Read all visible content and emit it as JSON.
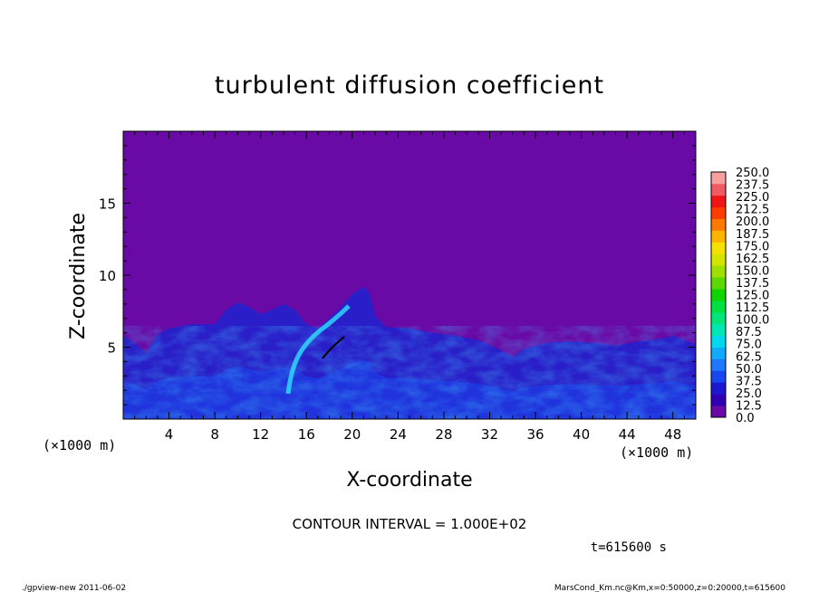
{
  "chart_data": {
    "type": "heatmap",
    "title": "turbulent diffusion coefficient",
    "xlabel": "X-coordinate",
    "ylabel": "Z-coordinate",
    "x_unit_left": "(×1000 m)",
    "x_unit_right": "(×1000 m)",
    "xlim": [
      0,
      50
    ],
    "ylim": [
      0,
      20
    ],
    "x_ticks": [
      4,
      8,
      12,
      16,
      20,
      24,
      28,
      32,
      36,
      40,
      44,
      48
    ],
    "y_ticks": [
      5,
      10,
      15
    ],
    "colorbar": {
      "levels": [
        0.0,
        12.5,
        25.0,
        37.5,
        50.0,
        62.5,
        75.0,
        87.5,
        100.0,
        112.5,
        125.0,
        137.5,
        150.0,
        162.5,
        175.0,
        187.5,
        200.0,
        212.5,
        225.0,
        237.5,
        250.0
      ],
      "level_labels": [
        "0.0",
        "12.5",
        "25.0",
        "37.5",
        "50.0",
        "62.5",
        "75.0",
        "87.5",
        "100.0",
        "112.5",
        "125.0",
        "137.5",
        "150.0",
        "162.5",
        "175.0",
        "187.5",
        "200.0",
        "212.5",
        "225.0",
        "237.5",
        "250.0"
      ],
      "colors": [
        "#6a0aa6",
        "#3000b4",
        "#1c18d2",
        "#1646f0",
        "#1e78ff",
        "#10aaff",
        "#00d8f0",
        "#00e6b4",
        "#00e678",
        "#00e040",
        "#10d400",
        "#5ad800",
        "#9ee000",
        "#d2e400",
        "#f6e000",
        "#ffb400",
        "#ff7800",
        "#ff3c00",
        "#f01414",
        "#f05a64",
        "#f8a0a0"
      ]
    },
    "background_value": 0.0,
    "region_top_profile": [
      [
        0,
        5.8
      ],
      [
        1,
        5.3
      ],
      [
        2,
        4.6
      ],
      [
        3,
        5.9
      ],
      [
        4,
        6.3
      ],
      [
        6,
        6.6
      ],
      [
        8,
        6.6
      ],
      [
        9,
        7.6
      ],
      [
        10,
        8.1
      ],
      [
        11,
        7.8
      ],
      [
        12,
        7.3
      ],
      [
        13,
        7.6
      ],
      [
        14,
        8.0
      ],
      [
        15,
        7.6
      ],
      [
        16,
        6.6
      ],
      [
        17,
        6.3
      ],
      [
        18,
        7.0
      ],
      [
        19,
        7.8
      ],
      [
        20,
        8.7
      ],
      [
        21,
        9.2
      ],
      [
        21.5,
        8.8
      ],
      [
        22,
        7.2
      ],
      [
        23,
        6.4
      ],
      [
        25,
        6.3
      ],
      [
        27,
        6.0
      ],
      [
        29,
        5.8
      ],
      [
        31,
        5.5
      ],
      [
        33,
        4.8
      ],
      [
        34,
        4.3
      ],
      [
        35,
        4.9
      ],
      [
        37,
        5.3
      ],
      [
        39,
        5.4
      ],
      [
        41,
        5.3
      ],
      [
        43,
        5.1
      ],
      [
        45,
        5.4
      ],
      [
        47,
        5.6
      ],
      [
        48,
        5.8
      ],
      [
        50,
        5.2
      ]
    ],
    "annotations": [
      "CONTOUR INTERVAL = 1.000E+02",
      "t=615600 s"
    ]
  },
  "footer": {
    "left": "./gpview-new   2011-06-02",
    "right": "MarsCond_Km.nc@Km,x=0:50000,z=0:20000,t=615600"
  }
}
